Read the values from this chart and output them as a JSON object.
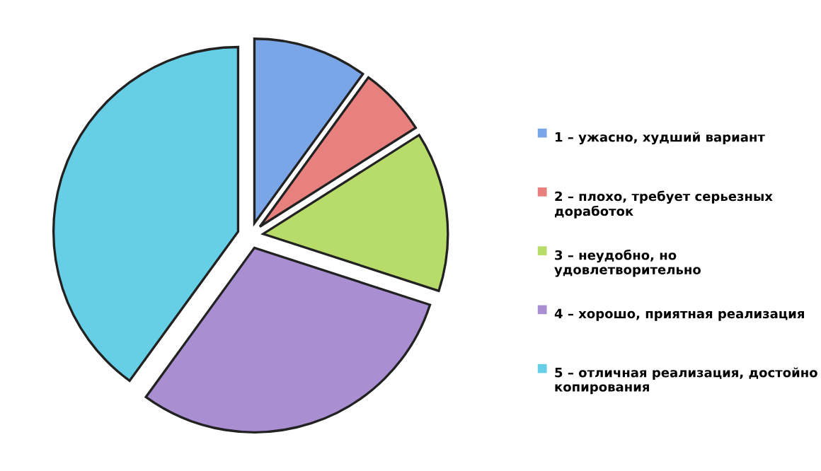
{
  "chart_data": {
    "type": "pie",
    "categories": [
      "1 – ужасно, худший вариант",
      "2 – плохо, требует серьезных доработок",
      "3 – неудобно, но удовлетворительно",
      "4 – хорошо, приятная реализация",
      "5 – отличная реализация, достойно копирования"
    ],
    "values": [
      10,
      6,
      14,
      30,
      40
    ],
    "colors": [
      "#7aa6e8",
      "#e8807e",
      "#b8dc6a",
      "#a98fd2",
      "#66cfe6"
    ],
    "legend": "right"
  }
}
